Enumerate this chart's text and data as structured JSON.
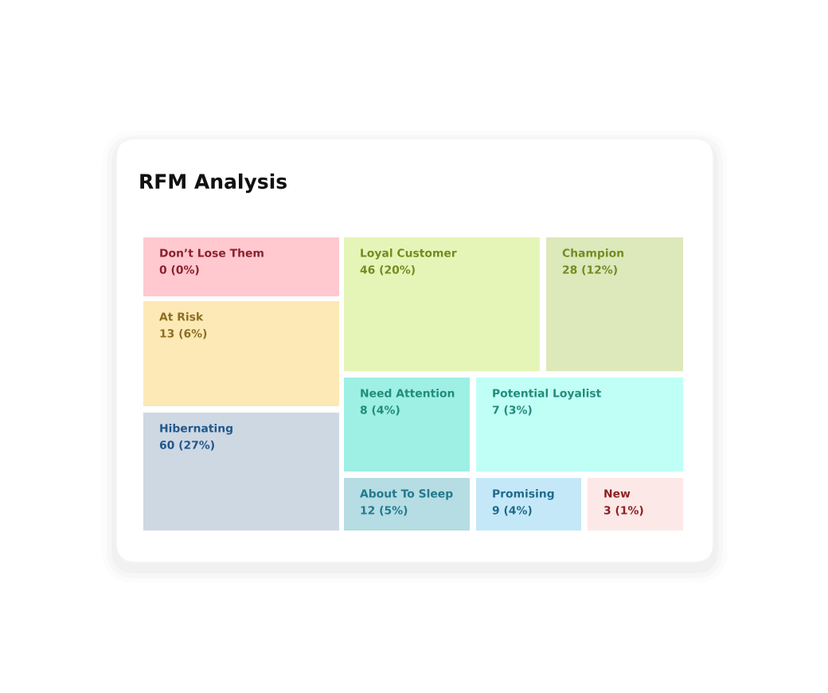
{
  "chart_data": {
    "type": "other",
    "title": "RFM Analysis",
    "categories": [
      "Don’t Lose Them",
      "At Risk",
      "Hibernating",
      "Loyal Customer",
      "Champion",
      "Need Attention",
      "Potential Loyalist",
      "About To Sleep",
      "Promising",
      "New"
    ],
    "values": [
      0,
      13,
      60,
      46,
      28,
      8,
      7,
      12,
      9,
      3
    ],
    "value_labels": [
      "0 (0%)",
      "13 (6%)",
      "60 (27%)",
      "46 (20%)",
      "28 (12%)",
      "8 (4%)",
      "7 (3%)",
      "12 (5%)",
      "9 (4%)",
      "3 (1%)"
    ],
    "colors": [
      "#ffc9cf",
      "#fde9b6",
      "#cdd8e3",
      "#e5f5b8",
      "#dde8bb",
      "#9df0e3",
      "#c0fff6",
      "#b6dce4",
      "#c4e8f8",
      "#fde8e8"
    ]
  }
}
